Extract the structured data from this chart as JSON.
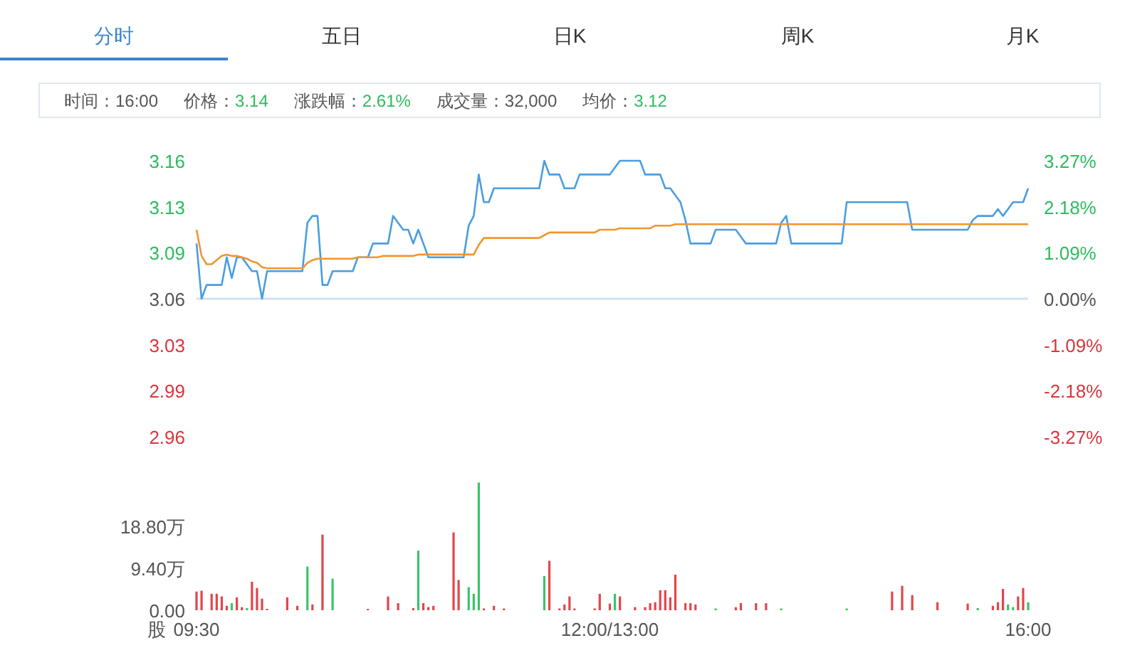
{
  "chart_data": [
    {
      "type": "line",
      "annotations": [
        "分时",
        "五日",
        "日K",
        "周K",
        "月K",
        "时间：",
        "16:00",
        "价格：",
        "3.14",
        "涨跌幅：",
        "2.61%",
        "成交量：",
        "32,000",
        "均价：",
        "3.12"
      ],
      "series": [
        {
          "color": "#4a9de0",
          "values": [
            3.1,
            3.06,
            3.07,
            3.07,
            3.07,
            3.07,
            3.09,
            3.075,
            3.09,
            3.09,
            3.085,
            3.08,
            3.08,
            3.06,
            3.08,
            3.08,
            3.08,
            3.08,
            3.08,
            3.08,
            3.08,
            3.08,
            3.115,
            3.12,
            3.12,
            3.07,
            3.07,
            3.08,
            3.08,
            3.08,
            3.08,
            3.08,
            3.09,
            3.09,
            3.09,
            3.1,
            3.1,
            3.1,
            3.1,
            3.12,
            3.115,
            3.11,
            3.11,
            3.1,
            3.11,
            3.1,
            3.09,
            3.09,
            3.09,
            3.09,
            3.09,
            3.09,
            3.09,
            3.09,
            3.113,
            3.12,
            3.15,
            3.13,
            3.13,
            3.14,
            3.14,
            3.14,
            3.14,
            3.14,
            3.14,
            3.14,
            3.14,
            3.14,
            3.14,
            3.16,
            3.15,
            3.15,
            3.15,
            3.14,
            3.14,
            3.14,
            3.15,
            3.15,
            3.15,
            3.15,
            3.15,
            3.15,
            3.15,
            3.155,
            3.16,
            3.16,
            3.16,
            3.16,
            3.16,
            3.15,
            3.15,
            3.15,
            3.15,
            3.14,
            3.14,
            3.135,
            3.13,
            3.117,
            3.1,
            3.1,
            3.1,
            3.1,
            3.1,
            3.11,
            3.11,
            3.11,
            3.11,
            3.11,
            3.105,
            3.1,
            3.1,
            3.1,
            3.1,
            3.1,
            3.1,
            3.1,
            3.115,
            3.12,
            3.1,
            3.1,
            3.1,
            3.1,
            3.1,
            3.1,
            3.1,
            3.1,
            3.1,
            3.1,
            3.1,
            3.13,
            3.13,
            3.13,
            3.13,
            3.13,
            3.13,
            3.13,
            3.13,
            3.13,
            3.13,
            3.13,
            3.13,
            3.13,
            3.11,
            3.11,
            3.11,
            3.11,
            3.11,
            3.11,
            3.11,
            3.11,
            3.11,
            3.11,
            3.11,
            3.11,
            3.117,
            3.12,
            3.12,
            3.12,
            3.12,
            3.125,
            3.12,
            3.125,
            3.13,
            3.13,
            3.13,
            3.14
          ]
        },
        {
          "color": "#f0962e",
          "values": [
            3.11,
            3.091,
            3.085,
            3.085,
            3.088,
            3.091,
            3.092,
            3.091,
            3.091,
            3.09,
            3.089,
            3.087,
            3.086,
            3.083,
            3.082,
            3.082,
            3.082,
            3.082,
            3.082,
            3.082,
            3.082,
            3.082,
            3.086,
            3.088,
            3.089,
            3.089,
            3.089,
            3.089,
            3.089,
            3.089,
            3.089,
            3.089,
            3.09,
            3.09,
            3.09,
            3.09,
            3.09,
            3.091,
            3.091,
            3.091,
            3.091,
            3.091,
            3.091,
            3.091,
            3.092,
            3.092,
            3.092,
            3.092,
            3.092,
            3.092,
            3.092,
            3.092,
            3.092,
            3.092,
            3.092,
            3.092,
            3.099,
            3.104,
            3.104,
            3.104,
            3.104,
            3.104,
            3.104,
            3.104,
            3.104,
            3.104,
            3.104,
            3.104,
            3.104,
            3.106,
            3.108,
            3.108,
            3.108,
            3.108,
            3.108,
            3.108,
            3.108,
            3.108,
            3.108,
            3.108,
            3.11,
            3.11,
            3.11,
            3.11,
            3.111,
            3.111,
            3.111,
            3.111,
            3.111,
            3.111,
            3.111,
            3.113,
            3.113,
            3.113,
            3.113,
            3.114,
            3.114,
            3.114,
            3.114,
            3.114,
            3.114,
            3.114,
            3.114,
            3.114,
            3.114,
            3.114,
            3.114,
            3.114,
            3.114,
            3.114,
            3.114,
            3.114,
            3.114,
            3.114,
            3.114,
            3.114,
            3.114,
            3.114,
            3.114,
            3.114,
            3.114,
            3.114,
            3.114,
            3.114,
            3.114,
            3.114,
            3.114,
            3.114,
            3.114,
            3.114,
            3.114,
            3.114,
            3.114,
            3.114,
            3.114,
            3.114,
            3.114,
            3.114,
            3.114,
            3.114,
            3.114,
            3.114,
            3.114,
            3.114,
            3.114,
            3.114,
            3.114,
            3.114,
            3.114,
            3.114,
            3.114,
            3.114,
            3.114,
            3.114,
            3.114,
            3.114,
            3.114,
            3.114,
            3.114,
            3.114,
            3.114,
            3.114,
            3.114,
            3.114,
            3.114,
            3.114
          ]
        }
      ],
      "ylim": [
        2.96,
        3.16
      ],
      "yticks": [
        2.96,
        {
          "value": 2.9933,
          "label": "2.99"
        },
        {
          "value": 3.0267,
          "label": "3.03"
        },
        3.06,
        {
          "value": 3.0933,
          "label": "3.09"
        },
        {
          "value": 3.1267,
          "label": "3.13"
        },
        3.16
      ],
      "y2lim": [
        -3.27,
        3.27
      ],
      "y2ticks": [
        {
          "value": -3.27,
          "label": "-3.27%"
        },
        {
          "value": -2.18,
          "label": "-2.18%"
        },
        {
          "value": -1.09,
          "label": "-1.09%"
        },
        {
          "value": 0,
          "label": "0.00%"
        },
        {
          "value": 1.09,
          "label": "1.09%"
        },
        {
          "value": 2.18,
          "label": "2.18%"
        },
        {
          "value": 3.27,
          "label": "3.27%"
        }
      ],
      "tick_labels": "y",
      "ref_lines": [
        {
          "axis": "y",
          "value": 3.06,
          "color": "#cfe2f3"
        }
      ]
    },
    {
      "type": "bar",
      "ylabel": "股",
      "categories": [
        "09:30",
        null,
        null,
        null,
        null,
        null,
        null,
        null,
        null,
        null,
        null,
        null,
        null,
        null,
        null,
        null,
        null,
        null,
        null,
        null,
        null,
        null,
        null,
        null,
        null,
        null,
        null,
        null,
        null,
        null,
        null,
        null,
        null,
        null,
        null,
        null,
        null,
        null,
        null,
        null,
        null,
        null,
        null,
        null,
        null,
        null,
        null,
        null,
        null,
        null,
        null,
        null,
        null,
        null,
        null,
        null,
        null,
        null,
        null,
        null,
        null,
        null,
        null,
        null,
        null,
        null,
        null,
        null,
        null,
        null,
        null,
        null,
        null,
        null,
        null,
        null,
        null,
        null,
        null,
        null,
        null,
        null,
        "12:00/13:00",
        null,
        null,
        null,
        null,
        null,
        null,
        null,
        null,
        null,
        null,
        null,
        null,
        null,
        null,
        null,
        null,
        null,
        null,
        null,
        null,
        null,
        null,
        null,
        null,
        null,
        null,
        null,
        null,
        null,
        null,
        null,
        null,
        null,
        null,
        null,
        null,
        null,
        null,
        null,
        null,
        null,
        null,
        null,
        null,
        null,
        null,
        null,
        null,
        null,
        null,
        null,
        null,
        null,
        null,
        null,
        null,
        null,
        null,
        null,
        null,
        null,
        null,
        null,
        null,
        null,
        null,
        null,
        null,
        null,
        null,
        null,
        null,
        null,
        null,
        null,
        null,
        null,
        null,
        null,
        null,
        null,
        null,
        "16:00"
      ],
      "values": [
        4.2,
        4.4,
        null,
        3.7,
        3.7,
        3.1,
        1.0,
        1.6,
        2.9,
        0.7,
        0.5,
        6.4,
        5.0,
        2.6,
        0.3,
        null,
        null,
        null,
        2.9,
        null,
        1.0,
        null,
        9.8,
        1.3,
        null,
        17.0,
        null,
        7.1,
        null,
        null,
        null,
        null,
        null,
        null,
        0.3,
        null,
        null,
        null,
        3.1,
        null,
        1.6,
        null,
        null,
        0.5,
        13.4,
        1.6,
        0.7,
        1.0,
        null,
        null,
        null,
        17.5,
        6.8,
        null,
        5.2,
        3.7,
        28.7,
        0.4,
        null,
        1.0,
        null,
        0.4,
        null,
        null,
        null,
        null,
        null,
        null,
        null,
        7.7,
        11.1,
        null,
        0.4,
        1.3,
        3.1,
        0.4,
        null,
        null,
        null,
        0.4,
        3.7,
        null,
        1.5,
        3.7,
        3.1,
        null,
        null,
        0.7,
        null,
        0.7,
        1.6,
        1.8,
        4.5,
        4.5,
        2.9,
        8.0,
        null,
        1.6,
        1.6,
        1.3,
        null,
        null,
        null,
        0.4,
        null,
        null,
        null,
        0.7,
        1.6,
        null,
        null,
        1.6,
        null,
        1.6,
        null,
        null,
        0.4,
        null,
        null,
        null,
        null,
        null,
        null,
        null,
        null,
        null,
        null,
        null,
        null,
        0.4,
        null,
        null,
        null,
        null,
        null,
        null,
        null,
        null,
        4.2,
        null,
        5.5,
        null,
        3.4,
        null,
        null,
        null,
        null,
        1.8,
        null,
        null,
        null,
        null,
        null,
        1.5,
        null,
        0.5,
        null,
        null,
        1.0,
        1.8,
        4.8,
        1.3,
        0.7,
        3.1,
        5.0,
        1.8
      ],
      "colors": [
        "#e0474c",
        "#e0474c",
        null,
        "#e0474c",
        "#e0474c",
        "#e0474c",
        "#e0474c",
        "#3cc36a",
        "#e0474c",
        "#e0474c",
        "#3cc36a",
        "#e0474c",
        "#e0474c",
        "#e0474c",
        "#e0474c",
        null,
        null,
        null,
        "#e0474c",
        null,
        "#e0474c",
        null,
        "#3cc36a",
        "#e0474c",
        null,
        "#e0474c",
        null,
        "#3cc36a",
        null,
        null,
        null,
        null,
        null,
        null,
        "#e0474c",
        null,
        null,
        null,
        "#e0474c",
        null,
        "#e0474c",
        null,
        null,
        "#e0474c",
        "#3cc36a",
        "#e0474c",
        "#e0474c",
        "#e0474c",
        null,
        null,
        null,
        "#e0474c",
        "#e0474c",
        null,
        "#3cc36a",
        "#3cc36a",
        "#3cc36a",
        "#e0474c",
        null,
        "#e0474c",
        null,
        "#e0474c",
        null,
        null,
        null,
        null,
        null,
        null,
        null,
        "#3cc36a",
        "#e0474c",
        null,
        "#e0474c",
        "#e0474c",
        "#e0474c",
        "#e0474c",
        null,
        null,
        null,
        "#e0474c",
        "#e0474c",
        null,
        "#e0474c",
        "#3cc36a",
        "#e0474c",
        null,
        null,
        "#e0474c",
        null,
        "#e0474c",
        "#e0474c",
        "#e0474c",
        "#e0474c",
        "#e0474c",
        "#e0474c",
        "#e0474c",
        null,
        "#e0474c",
        "#e0474c",
        "#e0474c",
        null,
        null,
        null,
        "#3cc36a",
        null,
        null,
        null,
        "#e0474c",
        "#e0474c",
        null,
        null,
        "#e0474c",
        null,
        "#e0474c",
        null,
        null,
        "#3cc36a",
        null,
        null,
        null,
        null,
        null,
        null,
        null,
        null,
        null,
        null,
        null,
        null,
        "#3cc36a",
        null,
        null,
        null,
        null,
        null,
        null,
        null,
        null,
        "#e0474c",
        null,
        "#e0474c",
        null,
        "#e0474c",
        null,
        null,
        null,
        null,
        "#e0474c",
        null,
        null,
        null,
        null,
        null,
        "#e0474c",
        null,
        "#3cc36a",
        null,
        null,
        "#e0474c",
        "#e0474c",
        "#e0474c",
        "#3cc36a",
        "#3cc36a",
        "#e0474c",
        "#e0474c",
        "#3cc36a"
      ],
      "ylim": [
        0,
        29
      ],
      "yticks": [
        {
          "value": 0,
          "label": "0.00"
        },
        {
          "value": 9.4,
          "label": "9.40万"
        },
        {
          "value": 18.8,
          "label": "18.80万"
        }
      ]
    }
  ]
}
